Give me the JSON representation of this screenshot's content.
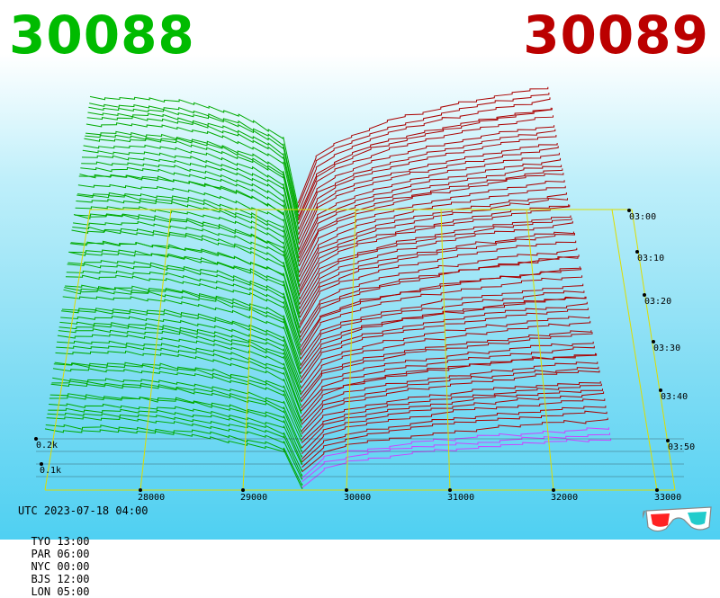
{
  "header": {
    "bid_price": "30088",
    "ask_price": "30089",
    "bid_color": "#00bb00",
    "ask_color": "#bb0000"
  },
  "footer": {
    "utc_label": "UTC 2023-07-18 04:00",
    "zones": [
      {
        "label": "TYO 13:00"
      },
      {
        "label": "PAR 06:00"
      },
      {
        "label": "NYC 00:00"
      },
      {
        "label": "BJS 12:00"
      },
      {
        "label": "LON 05:00"
      }
    ],
    "glasses_icon": "3d-glasses-icon"
  },
  "chart_data": {
    "type": "area",
    "x_ticks": [
      "28000",
      "29000",
      "30000",
      "31000",
      "32000",
      "33000"
    ],
    "x_range": [
      27000,
      33000
    ],
    "volume_ticks": [
      "0.2k",
      "0.1k"
    ],
    "time_ticks": [
      "03:00",
      "03:10",
      "03:20",
      "03:30",
      "03:40",
      "03:50"
    ],
    "time_range_minutes": 60,
    "series": [
      {
        "color": "#00aa00"
      },
      {
        "color": "#aa0000"
      },
      {
        "color": "#cc44ff"
      }
    ],
    "grid_color": "#dddd00",
    "grid": true
  }
}
